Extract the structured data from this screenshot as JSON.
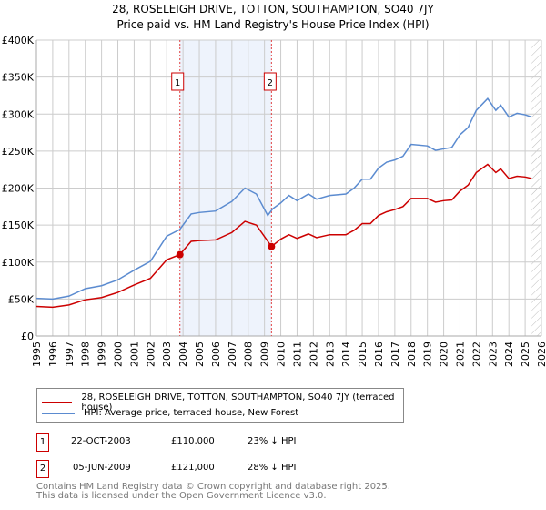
{
  "chart_data": {
    "type": "line",
    "title": "28, ROSELEIGH DRIVE, TOTTON, SOUTHAMPTON, SO40 7JY",
    "subtitle": "Price paid vs. HM Land Registry's House Price Index (HPI)",
    "xlim": [
      1995,
      2026
    ],
    "ylim": [
      0,
      400000
    ],
    "x_ticks": [
      "1995",
      "1996",
      "1997",
      "1998",
      "1999",
      "2000",
      "2001",
      "2002",
      "2003",
      "2004",
      "2005",
      "2006",
      "2007",
      "2008",
      "2009",
      "2010",
      "2011",
      "2012",
      "2013",
      "2014",
      "2015",
      "2016",
      "2017",
      "2018",
      "2019",
      "2020",
      "2021",
      "2022",
      "2023",
      "2024",
      "2025",
      "2026"
    ],
    "y_ticks": [
      {
        "v": 0,
        "label": "£0"
      },
      {
        "v": 50000,
        "label": "£50K"
      },
      {
        "v": 100000,
        "label": "£100K"
      },
      {
        "v": 150000,
        "label": "£150K"
      },
      {
        "v": 200000,
        "label": "£200K"
      },
      {
        "v": 250000,
        "label": "£250K"
      },
      {
        "v": 300000,
        "label": "£300K"
      },
      {
        "v": 350000,
        "label": "£350K"
      },
      {
        "v": 400000,
        "label": "£400K"
      }
    ],
    "grid": true,
    "shaded_range": [
      2003.8,
      2009.43
    ],
    "forecast_hatch_from": 2025.4,
    "series": [
      {
        "name": "28, ROSELEIGH DRIVE, TOTTON, SOUTHAMPTON, SO40 7JY (terraced house)",
        "color": "#cc0000",
        "x": [
          1995,
          1996,
          1997,
          1998,
          1999,
          2000,
          2001,
          2002,
          2003,
          2003.8,
          2004.5,
          2005,
          2006,
          2007,
          2007.8,
          2008.5,
          2009.43,
          2010,
          2010.5,
          2011,
          2011.7,
          2012.2,
          2013,
          2014,
          2014.5,
          2015,
          2015.5,
          2016,
          2016.5,
          2017,
          2017.5,
          2018,
          2019,
          2019.5,
          2020,
          2020.5,
          2021,
          2021.5,
          2022,
          2022.7,
          2023.2,
          2023.5,
          2024,
          2024.5,
          2025,
          2025.4
        ],
        "y": [
          40000,
          39000,
          42000,
          49000,
          52000,
          59000,
          69000,
          78000,
          103000,
          110000,
          128000,
          129000,
          130000,
          140000,
          155000,
          150000,
          121000,
          131000,
          137000,
          132000,
          138000,
          133000,
          137000,
          137000,
          143000,
          152000,
          152000,
          163000,
          168000,
          171000,
          175000,
          186000,
          186000,
          181000,
          183000,
          184000,
          196000,
          204000,
          221000,
          232000,
          221000,
          226000,
          213000,
          216000,
          215000,
          213000
        ]
      },
      {
        "name": "HPI: Average price, terraced house, New Forest",
        "color": "#5b8bd0",
        "x": [
          1995,
          1996,
          1997,
          1998,
          1999,
          2000,
          2001,
          2002,
          2003,
          2003.8,
          2004.5,
          2005,
          2006,
          2007,
          2007.8,
          2008.5,
          2009.2,
          2009.5,
          2010,
          2010.5,
          2011,
          2011.7,
          2012.2,
          2013,
          2014,
          2014.5,
          2015,
          2015.5,
          2016,
          2016.5,
          2017,
          2017.5,
          2018,
          2019,
          2019.5,
          2020,
          2020.5,
          2021,
          2021.5,
          2022,
          2022.7,
          2023.2,
          2023.5,
          2024,
          2024.5,
          2025,
          2025.4
        ],
        "y": [
          51000,
          50000,
          54000,
          64000,
          68000,
          76000,
          89000,
          101000,
          135000,
          144000,
          165000,
          167000,
          169000,
          182000,
          200000,
          192000,
          163000,
          172000,
          180000,
          190000,
          183000,
          192000,
          185000,
          190000,
          192000,
          200000,
          212000,
          212000,
          227000,
          235000,
          238000,
          243000,
          259000,
          257000,
          251000,
          253000,
          255000,
          272000,
          282000,
          305000,
          321000,
          305000,
          312000,
          296000,
          301000,
          299000,
          296000
        ]
      }
    ],
    "sales": [
      {
        "label": "1",
        "x": 2003.81,
        "y": 110000
      },
      {
        "label": "2",
        "x": 2009.43,
        "y": 121000
      }
    ]
  },
  "legend": {
    "red": "28, ROSELEIGH DRIVE, TOTTON, SOUTHAMPTON, SO40 7JY (terraced house)",
    "blue": "HPI: Average price, terraced house, New Forest"
  },
  "sales_table": [
    {
      "num": "1",
      "date": "22-OCT-2003",
      "price": "£110,000",
      "hpi": "23% ↓ HPI"
    },
    {
      "num": "2",
      "date": "05-JUN-2009",
      "price": "£121,000",
      "hpi": "28% ↓ HPI"
    }
  ],
  "footer": {
    "line1": "Contains HM Land Registry data © Crown copyright and database right 2025.",
    "line2": "This data is licensed under the Open Government Licence v3.0."
  }
}
